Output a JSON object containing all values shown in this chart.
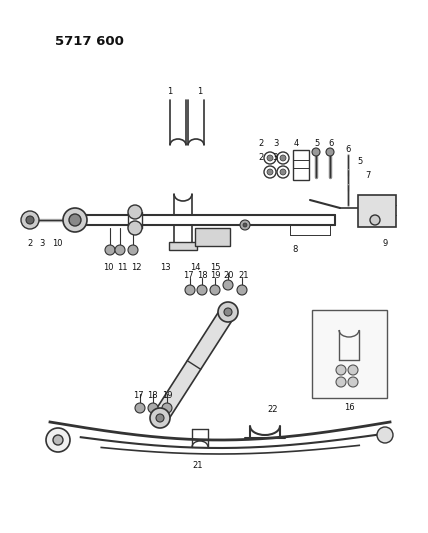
{
  "title": "5717 600",
  "bg": "#ffffff",
  "lc": "#333333",
  "tc": "#111111",
  "fig_w": 4.28,
  "fig_h": 5.33,
  "dpi": 100
}
